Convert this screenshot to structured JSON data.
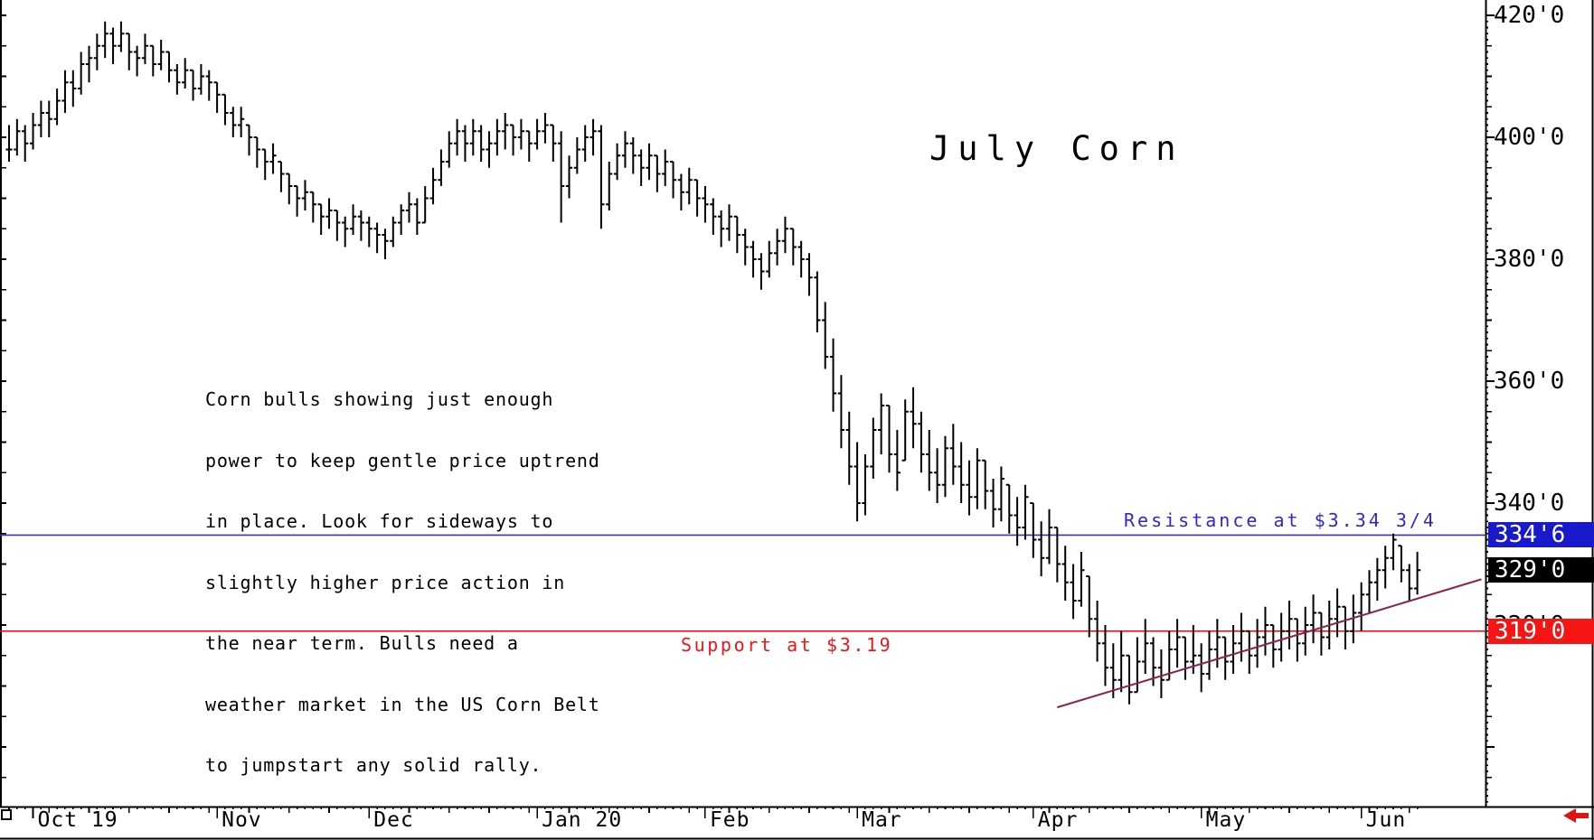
{
  "title": "July Corn",
  "annotation": {
    "lines": [
      "Corn bulls showing just enough",
      "power to keep gentle price uptrend",
      "in place. Look for sideways to",
      "slightly higher price action in",
      "the near term. Bulls need a",
      "weather market in the US Corn Belt",
      "to jumpstart any solid rally."
    ]
  },
  "levels": {
    "resistance_label": "Resistance at $3.34 3/4",
    "support_label": "Support at $3.19"
  },
  "colors": {
    "bar": "#000000",
    "resistance_line": "#3333cc",
    "resistance_text": "#2a2ad0",
    "resistance_box": "#1a1acd",
    "support_line": "#ff0000",
    "support_text": "#f01515",
    "support_box": "#f51515",
    "last_box": "#000000",
    "trendline": "#8b2252",
    "arrow": "#e01313"
  },
  "y_axis": {
    "ticks": [
      {
        "label": "420'0",
        "price": 420
      },
      {
        "label": "400'0",
        "price": 400
      },
      {
        "label": "380'0",
        "price": 380
      },
      {
        "label": "360'0",
        "price": 360
      },
      {
        "label": "340'0",
        "price": 340
      },
      {
        "label": "320'0",
        "price": 320
      }
    ],
    "price_boxes": [
      {
        "label": "334'6",
        "price": 334.75,
        "bg_color": "#1a1acd",
        "name": "resistance-price-box"
      },
      {
        "label": "329'0",
        "price": 329.0,
        "bg_color": "#000000",
        "name": "last-price-box"
      },
      {
        "label": "319'0",
        "price": 319.0,
        "bg_color": "#f51515",
        "name": "support-price-box"
      }
    ]
  },
  "x_axis": {
    "months": [
      {
        "label": "Oct 19",
        "bar": 3
      },
      {
        "label": "Nov",
        "bar": 26
      },
      {
        "label": "Dec",
        "bar": 45
      },
      {
        "label": "Jan 20",
        "bar": 66
      },
      {
        "label": "Feb",
        "bar": 87
      },
      {
        "label": "Mar",
        "bar": 106
      },
      {
        "label": "Apr",
        "bar": 128
      },
      {
        "label": "May",
        "bar": 149
      },
      {
        "label": "Jun",
        "bar": 169
      }
    ]
  },
  "chart_data": {
    "type": "ohlc-bar",
    "instrument": "July Corn",
    "price_unit": "US cents per bushel (XXX'Y, Y = eighths)",
    "y_axis_range": [
      290,
      423
    ],
    "resistance": 334.75,
    "support": 319.0,
    "last_close": 329.0,
    "trendline": {
      "from": {
        "bar": 131,
        "price": 306.5
      },
      "to": {
        "bar": 184,
        "price": 327.5
      }
    },
    "bars_format": [
      "high",
      "low",
      "close"
    ],
    "bars": [
      [
        402,
        396,
        398
      ],
      [
        403,
        397,
        401
      ],
      [
        402,
        396,
        399
      ],
      [
        404,
        398,
        402
      ],
      [
        406,
        400,
        404
      ],
      [
        406,
        400,
        403
      ],
      [
        408,
        402,
        406
      ],
      [
        411,
        404,
        409
      ],
      [
        411,
        405,
        408
      ],
      [
        414,
        407,
        412
      ],
      [
        415,
        409,
        413
      ],
      [
        417,
        411,
        415
      ],
      [
        419,
        413,
        417
      ],
      [
        418,
        412,
        415
      ],
      [
        419,
        414,
        417
      ],
      [
        417,
        411,
        414
      ],
      [
        415,
        410,
        413
      ],
      [
        417,
        412,
        415
      ],
      [
        415,
        410,
        412
      ],
      [
        416,
        411,
        414
      ],
      [
        414,
        409,
        411
      ],
      [
        412,
        407,
        409
      ],
      [
        413,
        408,
        411
      ],
      [
        411,
        406,
        408
      ],
      [
        412,
        407,
        410
      ],
      [
        411,
        406,
        409
      ],
      [
        409,
        404,
        407
      ],
      [
        407,
        402,
        404
      ],
      [
        405,
        400,
        402
      ],
      [
        405,
        400,
        403
      ],
      [
        402,
        397,
        400
      ],
      [
        400,
        395,
        398
      ],
      [
        398,
        393,
        396
      ],
      [
        399,
        394,
        397
      ],
      [
        396,
        391,
        394
      ],
      [
        394,
        389,
        392
      ],
      [
        392,
        387,
        390
      ],
      [
        393,
        388,
        391
      ],
      [
        391,
        386,
        389
      ],
      [
        389,
        384,
        387
      ],
      [
        390,
        385,
        388
      ],
      [
        388,
        383,
        386
      ],
      [
        387,
        382,
        385
      ],
      [
        389,
        384,
        387
      ],
      [
        388,
        383,
        386
      ],
      [
        387,
        382,
        385
      ],
      [
        386,
        381,
        384
      ],
      [
        385,
        380,
        383
      ],
      [
        387,
        382,
        386
      ],
      [
        389,
        384,
        388
      ],
      [
        391,
        386,
        389
      ],
      [
        390,
        384,
        386
      ],
      [
        392,
        386,
        390
      ],
      [
        395,
        389,
        393
      ],
      [
        398,
        392,
        396
      ],
      [
        401,
        395,
        399
      ],
      [
        403,
        397,
        401
      ],
      [
        402,
        396,
        399
      ],
      [
        403,
        397,
        401
      ],
      [
        402,
        396,
        398
      ],
      [
        401,
        395,
        399
      ],
      [
        403,
        397,
        401
      ],
      [
        404,
        398,
        402
      ],
      [
        402,
        397,
        400
      ],
      [
        403,
        398,
        401
      ],
      [
        401,
        396,
        399
      ],
      [
        403,
        398,
        401
      ],
      [
        404,
        399,
        402
      ],
      [
        402,
        396,
        399
      ],
      [
        401,
        386,
        392
      ],
      [
        397,
        390,
        395
      ],
      [
        400,
        394,
        398
      ],
      [
        402,
        396,
        400
      ],
      [
        403,
        397,
        401
      ],
      [
        402,
        385,
        389
      ],
      [
        396,
        388,
        394
      ],
      [
        399,
        393,
        397
      ],
      [
        401,
        395,
        399
      ],
      [
        400,
        394,
        397
      ],
      [
        398,
        392,
        395
      ],
      [
        399,
        393,
        397
      ],
      [
        397,
        391,
        394
      ],
      [
        398,
        392,
        396
      ],
      [
        396,
        390,
        393
      ],
      [
        394,
        388,
        391
      ],
      [
        395,
        389,
        393
      ],
      [
        393,
        387,
        390
      ],
      [
        392,
        386,
        389
      ],
      [
        390,
        384,
        387
      ],
      [
        388,
        382,
        385
      ],
      [
        389,
        383,
        387
      ],
      [
        387,
        381,
        384
      ],
      [
        385,
        379,
        382
      ],
      [
        383,
        377,
        380
      ],
      [
        381,
        375,
        378
      ],
      [
        383,
        377,
        381
      ],
      [
        385,
        379,
        383
      ],
      [
        387,
        381,
        385
      ],
      [
        385,
        379,
        382
      ],
      [
        383,
        377,
        380
      ],
      [
        381,
        374,
        377
      ],
      [
        378,
        368,
        370
      ],
      [
        373,
        362,
        364
      ],
      [
        367,
        355,
        358
      ],
      [
        361,
        349,
        352
      ],
      [
        355,
        343,
        346
      ],
      [
        350,
        337,
        340
      ],
      [
        348,
        338,
        346
      ],
      [
        354,
        344,
        352
      ],
      [
        358,
        348,
        356
      ],
      [
        356,
        345,
        348
      ],
      [
        352,
        342,
        345
      ],
      [
        357,
        347,
        355
      ],
      [
        359,
        349,
        353
      ],
      [
        355,
        345,
        348
      ],
      [
        352,
        342,
        345
      ],
      [
        349,
        340,
        343
      ],
      [
        351,
        341,
        349
      ],
      [
        353,
        343,
        346
      ],
      [
        350,
        340,
        343
      ],
      [
        347,
        338,
        341
      ],
      [
        349,
        339,
        347
      ],
      [
        347,
        339,
        342
      ],
      [
        344,
        336,
        339
      ],
      [
        346,
        337,
        344
      ],
      [
        343,
        335,
        338
      ],
      [
        341,
        333,
        336
      ],
      [
        343,
        334,
        341
      ],
      [
        340,
        331,
        334
      ],
      [
        337,
        328,
        331
      ],
      [
        339,
        330,
        336
      ],
      [
        336,
        327,
        330
      ],
      [
        333,
        324,
        327
      ],
      [
        330,
        321,
        324
      ],
      [
        332,
        323,
        329
      ],
      [
        328,
        318,
        321
      ],
      [
        324,
        314,
        317
      ],
      [
        320,
        310,
        313
      ],
      [
        317,
        308,
        311
      ],
      [
        319,
        309,
        315
      ],
      [
        315,
        307,
        309
      ],
      [
        318,
        309,
        314
      ],
      [
        321,
        312,
        317
      ],
      [
        318,
        310,
        313
      ],
      [
        316,
        308,
        311
      ],
      [
        319,
        311,
        316
      ],
      [
        321,
        313,
        318
      ],
      [
        318,
        311,
        314
      ],
      [
        320,
        312,
        315
      ],
      [
        317,
        309,
        312
      ],
      [
        319,
        311,
        316
      ],
      [
        321,
        313,
        318
      ],
      [
        318,
        311,
        314
      ],
      [
        320,
        312,
        317
      ],
      [
        322,
        314,
        319
      ],
      [
        319,
        312,
        315
      ],
      [
        321,
        313,
        318
      ],
      [
        323,
        315,
        320
      ],
      [
        320,
        313,
        316
      ],
      [
        322,
        314,
        319
      ],
      [
        324,
        316,
        321
      ],
      [
        321,
        314,
        317
      ],
      [
        323,
        315,
        320
      ],
      [
        325,
        317,
        322
      ],
      [
        322,
        315,
        318
      ],
      [
        324,
        316,
        321
      ],
      [
        326,
        318,
        323
      ],
      [
        323,
        316,
        319
      ],
      [
        325,
        317,
        322
      ],
      [
        327,
        319,
        325
      ],
      [
        329,
        322,
        327
      ],
      [
        331,
        324,
        329
      ],
      [
        333,
        326,
        331
      ],
      [
        335,
        329,
        334
      ],
      [
        333,
        327,
        329
      ],
      [
        330,
        324,
        326
      ],
      [
        332,
        325,
        329
      ]
    ]
  }
}
